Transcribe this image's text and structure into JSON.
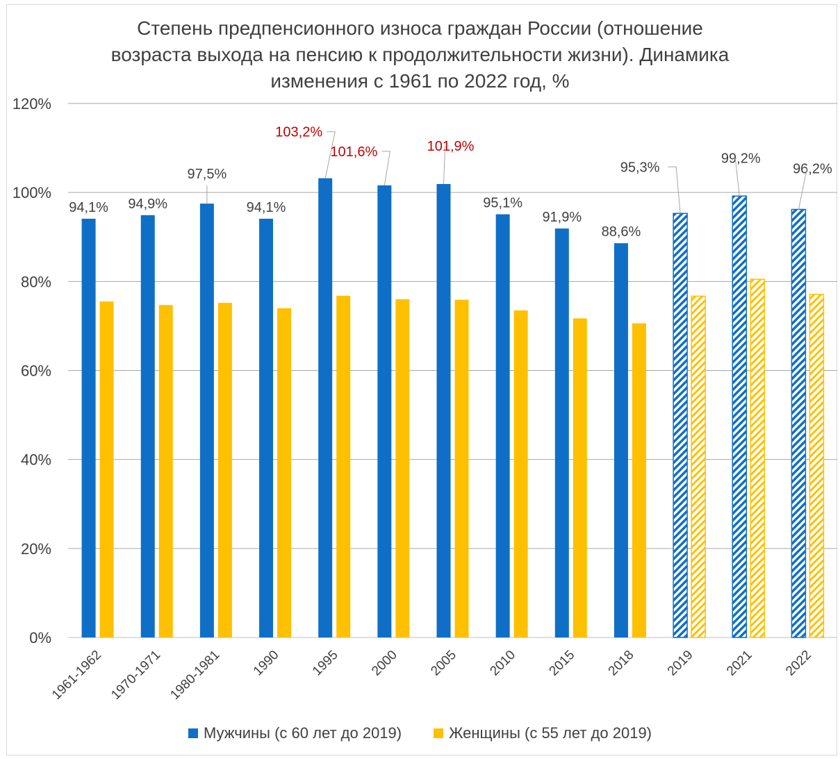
{
  "title_lines": [
    "Степень предпенсионного износа граждан России (отношение",
    "возраста выхода на пенсию к продолжительности жизни). Динамика",
    "изменения с 1961 по 2022 год, %"
  ],
  "legend": {
    "men_label": "Мужчины  (с 60 лет до 2019)",
    "women_label": "Женщины (с 55 лет до 2019)"
  },
  "colors": {
    "men": "#0f6fc6",
    "women": "#ffc000",
    "highlight_label": "#c00000",
    "text": "#3f3f3f",
    "grid": "#a6a6a6"
  },
  "chart_data": {
    "type": "bar",
    "ylim": [
      0,
      120
    ],
    "yticks": [
      "0%",
      "20%",
      "40%",
      "60%",
      "80%",
      "100%",
      "120%"
    ],
    "ytick_values": [
      0,
      20,
      40,
      60,
      80,
      100,
      120
    ],
    "grid": true,
    "legend_position": "bottom",
    "categories": [
      "1961-1962",
      "1970-1971",
      "1980-1981",
      "1990",
      "1995",
      "2000",
      "2005",
      "2010",
      "2015",
      "2018",
      "2019",
      "2021",
      "2022"
    ],
    "series": [
      {
        "name": "Мужчины  (с 60 лет до 2019)",
        "values": [
          94.1,
          94.9,
          97.5,
          94.1,
          103.2,
          101.6,
          101.9,
          95.1,
          91.9,
          88.6,
          95.3,
          99.2,
          96.2
        ],
        "labels": [
          "94,1%",
          "94,9%",
          "97,5%",
          "94,1%",
          "103,2%",
          "101,6%",
          "101,9%",
          "95,1%",
          "91,9%",
          "88,6%",
          "95,3%",
          "99,2%",
          "96,2%"
        ],
        "highlighted": [
          false,
          false,
          false,
          false,
          true,
          true,
          true,
          false,
          false,
          false,
          false,
          false,
          false
        ]
      },
      {
        "name": "Женщины (с 55 лет до 2019)",
        "values": [
          75.5,
          74.7,
          75.2,
          74.0,
          76.8,
          76.0,
          75.9,
          73.5,
          71.7,
          70.6,
          76.7,
          80.5,
          77.1
        ]
      }
    ],
    "hatched_categories": [
      "2019",
      "2021",
      "2022"
    ]
  }
}
